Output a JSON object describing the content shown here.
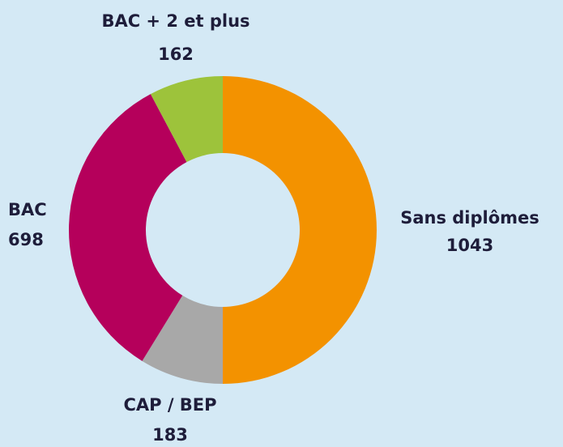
{
  "chart_data": {
    "type": "donut",
    "categories": [
      "Sans diplômes",
      "CAP / BEP",
      "BAC",
      "BAC + 2 et plus"
    ],
    "values": [
      1043,
      183,
      698,
      162
    ],
    "colors": [
      "#f39200",
      "#a8a8a8",
      "#b5005b",
      "#9dc33b"
    ]
  }
}
